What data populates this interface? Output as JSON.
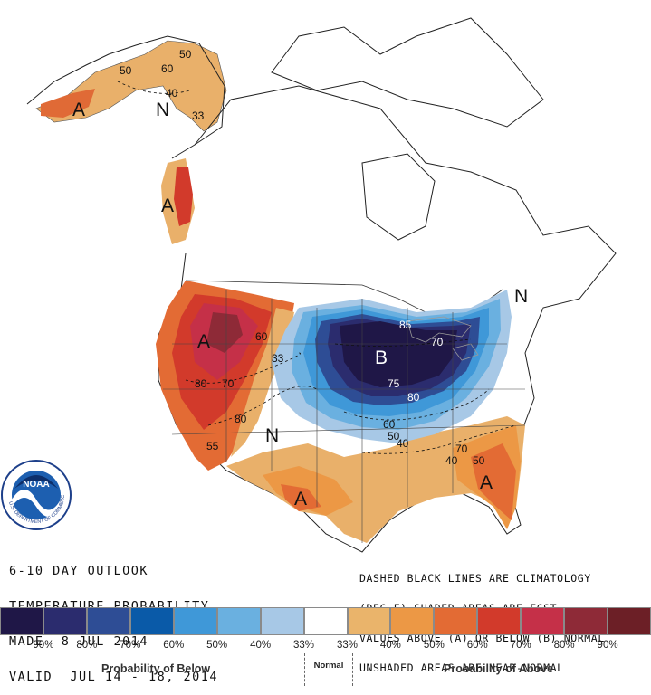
{
  "outlook": {
    "line1": "6-10 DAY OUTLOOK",
    "line2": "TEMPERATURE PROBABILITY",
    "line3": "MADE  8 JUL 2014",
    "line4": "VALID  JUL 14 - 18, 2014"
  },
  "notes": {
    "line1": "DASHED BLACK LINES ARE CLIMATOLOGY",
    "line2": "(DEG F) SHADED AREAS ARE FCST",
    "line3": "VALUES ABOVE (A) OR BELOW (B) NORMAL",
    "line4": "UNSHADED AREAS ARE NEAR-NORMAL"
  },
  "logo": {
    "center_text": "NOAA",
    "ring_text": "U.S. DEPARTMENT OF COMMERCE"
  },
  "map_labels": {
    "above": "A",
    "below": "B",
    "normal": "N",
    "climatology": [
      "80",
      "70",
      "60",
      "55",
      "50",
      "33",
      "40",
      "50",
      "33",
      "80",
      "70",
      "75",
      "60",
      "50",
      "40",
      "40",
      "50",
      "60",
      "70",
      "80",
      "85"
    ]
  },
  "legend": {
    "colors": [
      "#1f1747",
      "#2b2c6e",
      "#2e4d95",
      "#0a5aa8",
      "#3f98d8",
      "#6ab0e0",
      "#a7c8e6",
      "#ffffff",
      "#eab46b",
      "#ec9845",
      "#e36b34",
      "#d23a2b",
      "#c53048",
      "#8e2a37",
      "#6c1f26"
    ],
    "ticks": [
      "90%",
      "80%",
      "70%",
      "60%",
      "50%",
      "40%",
      "33%",
      "33%",
      "40%",
      "50%",
      "60%",
      "70%",
      "80%",
      "90%"
    ],
    "below_caption": "Probability of Below",
    "normal_caption": "Normal",
    "above_caption": "Probability of Above"
  }
}
